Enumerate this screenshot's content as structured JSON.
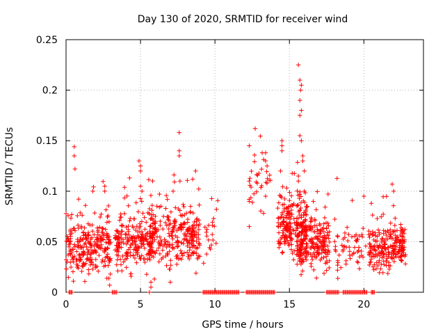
{
  "chart_data": {
    "type": "scatter",
    "title": "Day 130 of 2020, SRMTID for receiver wind",
    "xlabel": "GPS time / hours",
    "ylabel": "SRMTID / TECUs",
    "xlim": [
      0,
      24
    ],
    "ylim": [
      0,
      0.25
    ],
    "xticks": [
      0,
      5,
      10,
      15,
      20
    ],
    "yticks": [
      0,
      0.05,
      0.1,
      0.15,
      0.2,
      0.25
    ],
    "xtick_labels": [
      "0",
      "5",
      "10",
      "15",
      "20"
    ],
    "ytick_labels": [
      "0",
      "0.05",
      "0.1",
      "0.15",
      "0.2",
      "0.25"
    ],
    "grid": true,
    "marker": "+",
    "series": [
      {
        "name": "SRMTID",
        "color": "#ff0000",
        "clusters": [
          {
            "x_start": 0.0,
            "x_end": 3.0,
            "y_center": 0.045,
            "y_spread": 0.018,
            "count": 260,
            "seed": 11
          },
          {
            "x_start": 3.3,
            "x_end": 6.0,
            "y_center": 0.048,
            "y_spread": 0.016,
            "count": 230,
            "seed": 23
          },
          {
            "x_start": 5.5,
            "x_end": 9.0,
            "y_center": 0.055,
            "y_spread": 0.018,
            "count": 280,
            "seed": 37
          },
          {
            "x_start": 9.2,
            "x_end": 10.2,
            "y_center": 0.055,
            "y_spread": 0.015,
            "count": 20,
            "seed": 41
          },
          {
            "x_start": 12.2,
            "x_end": 14.0,
            "y_center": 0.11,
            "y_spread": 0.02,
            "count": 30,
            "seed": 53
          },
          {
            "x_start": 14.2,
            "x_end": 16.2,
            "y_center": 0.065,
            "y_spread": 0.02,
            "count": 230,
            "seed": 61
          },
          {
            "x_start": 15.5,
            "x_end": 17.7,
            "y_center": 0.05,
            "y_spread": 0.018,
            "count": 230,
            "seed": 71
          },
          {
            "x_start": 18.0,
            "x_end": 20.2,
            "y_center": 0.045,
            "y_spread": 0.015,
            "count": 60,
            "seed": 83
          },
          {
            "x_start": 20.3,
            "x_end": 22.8,
            "y_center": 0.042,
            "y_spread": 0.015,
            "count": 230,
            "seed": 97
          }
        ],
        "highlights": [
          [
            0.55,
            0.144
          ],
          [
            0.55,
            0.135
          ],
          [
            0.6,
            0.122
          ],
          [
            2.6,
            0.105
          ],
          [
            2.6,
            0.1
          ],
          [
            1.8,
            0.1
          ],
          [
            4.9,
            0.13
          ],
          [
            5.0,
            0.125
          ],
          [
            5.0,
            0.12
          ],
          [
            5.0,
            0.105
          ],
          [
            5.1,
            0.1
          ],
          [
            7.6,
            0.158
          ],
          [
            7.6,
            0.14
          ],
          [
            7.6,
            0.135
          ],
          [
            7.65,
            0.11
          ],
          [
            8.7,
            0.12
          ],
          [
            12.3,
            0.145
          ],
          [
            12.3,
            0.11
          ],
          [
            12.3,
            0.09
          ],
          [
            12.7,
            0.162
          ],
          [
            13.4,
            0.138
          ],
          [
            13.4,
            0.13
          ],
          [
            13.5,
            0.125
          ],
          [
            13.5,
            0.108
          ],
          [
            13.4,
            0.095
          ],
          [
            12.3,
            0.065
          ],
          [
            14.5,
            0.15
          ],
          [
            14.5,
            0.145
          ],
          [
            14.5,
            0.14
          ],
          [
            14.4,
            0.12
          ],
          [
            15.6,
            0.225
          ],
          [
            15.7,
            0.21
          ],
          [
            15.8,
            0.205
          ],
          [
            15.75,
            0.2
          ],
          [
            15.7,
            0.19
          ],
          [
            15.8,
            0.18
          ],
          [
            15.7,
            0.175
          ],
          [
            15.7,
            0.155
          ],
          [
            15.8,
            0.15
          ],
          [
            15.9,
            0.135
          ],
          [
            15.9,
            0.13
          ],
          [
            16.0,
            0.12
          ],
          [
            15.6,
            0.115
          ],
          [
            15.6,
            0.11
          ],
          [
            16.0,
            0.1
          ],
          [
            16.6,
            0.09
          ],
          [
            16.2,
            0.085
          ],
          [
            10.1,
            0.082
          ],
          [
            20.0,
            0.095
          ],
          [
            21.9,
            0.107
          ],
          [
            22.0,
            0.1
          ],
          [
            20.5,
            0.088
          ],
          [
            5.7,
            0.01
          ],
          [
            5.7,
            0.005
          ],
          [
            5.6,
            0.0
          ],
          [
            7.0,
            0.01
          ]
        ],
        "zero_segments": [
          [
            0.2,
            0.4
          ],
          [
            3.1,
            3.4
          ],
          [
            9.2,
            11.6
          ],
          [
            12.1,
            14.0
          ],
          [
            17.5,
            18.3
          ],
          [
            18.6,
            20.2
          ],
          [
            20.5,
            20.7
          ]
        ]
      }
    ]
  }
}
